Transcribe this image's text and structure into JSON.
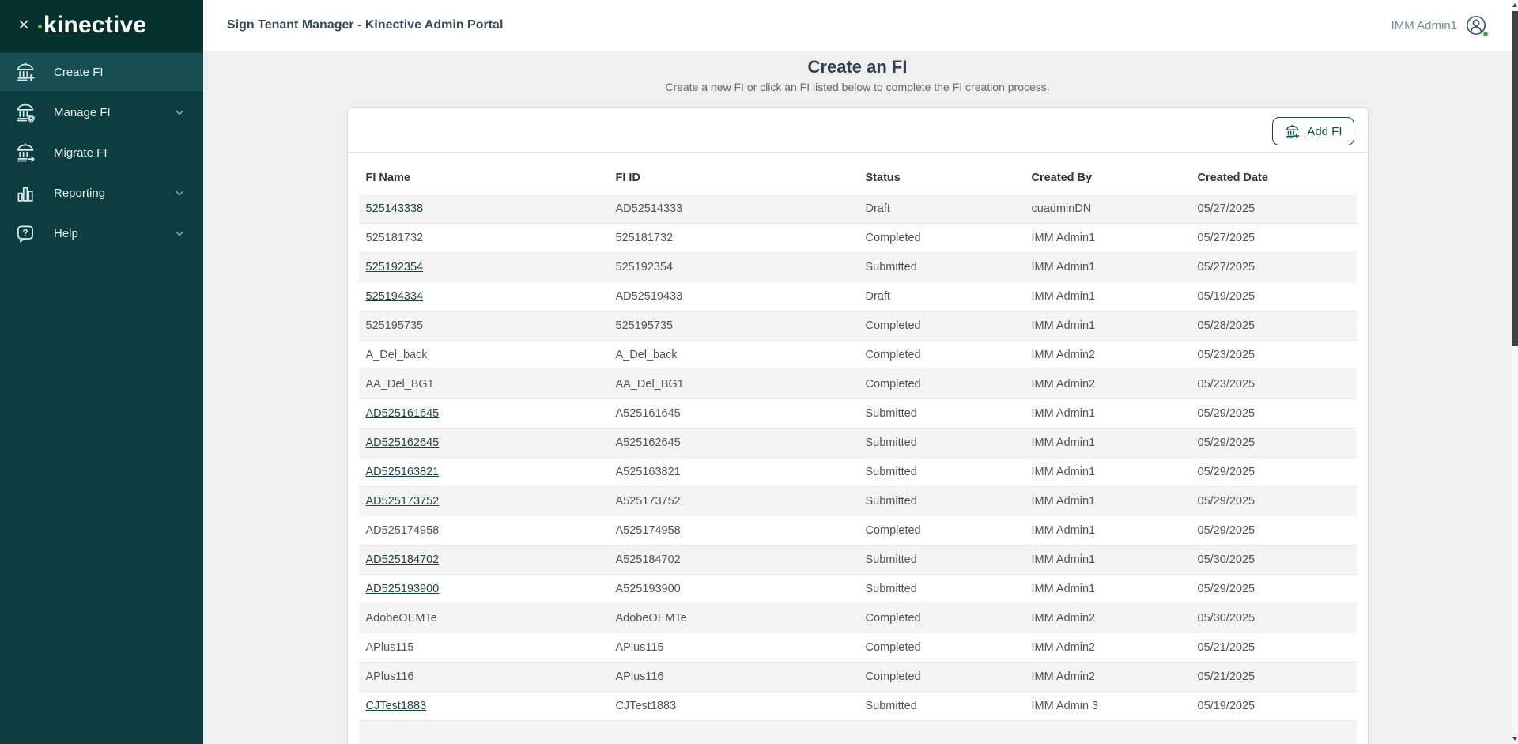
{
  "brand": {
    "logo_text": "kinective"
  },
  "topbar": {
    "title": "Sign Tenant Manager - Kinective Admin Portal",
    "user_name": "IMM Admin1"
  },
  "sidebar": {
    "items": [
      {
        "label": "Create FI",
        "icon": "bank-plus-icon",
        "active": true,
        "has_chevron": false
      },
      {
        "label": "Manage FI",
        "icon": "bank-gear-icon",
        "active": false,
        "has_chevron": true
      },
      {
        "label": "Migrate FI",
        "icon": "bank-arrow-icon",
        "active": false,
        "has_chevron": false
      },
      {
        "label": "Reporting",
        "icon": "bar-chart-icon",
        "active": false,
        "has_chevron": true
      },
      {
        "label": "Help",
        "icon": "help-bubble-icon",
        "active": false,
        "has_chevron": true
      }
    ]
  },
  "page": {
    "heading": "Create an FI",
    "subheading": "Create a new FI or click an FI listed below to complete the FI creation process.",
    "add_fi_button": "Add FI"
  },
  "table": {
    "columns": [
      "FI Name",
      "FI ID",
      "Status",
      "Created By",
      "Created Date"
    ],
    "rows": [
      {
        "name": "525143338",
        "link": true,
        "id": "AD52514333",
        "status": "Draft",
        "created_by": "cuadminDN",
        "created_date": "05/27/2025"
      },
      {
        "name": "525181732",
        "link": false,
        "id": "525181732",
        "status": "Completed",
        "created_by": "IMM Admin1",
        "created_date": "05/27/2025"
      },
      {
        "name": "525192354",
        "link": true,
        "id": "525192354",
        "status": "Submitted",
        "created_by": "IMM Admin1",
        "created_date": "05/27/2025"
      },
      {
        "name": "525194334",
        "link": true,
        "id": "AD52519433",
        "status": "Draft",
        "created_by": "IMM Admin1",
        "created_date": "05/19/2025"
      },
      {
        "name": "525195735",
        "link": false,
        "id": "525195735",
        "status": "Completed",
        "created_by": "IMM Admin1",
        "created_date": "05/28/2025"
      },
      {
        "name": "A_Del_back",
        "link": false,
        "id": "A_Del_back",
        "status": "Completed",
        "created_by": "IMM Admin2",
        "created_date": "05/23/2025"
      },
      {
        "name": "AA_Del_BG1",
        "link": false,
        "id": "AA_Del_BG1",
        "status": "Completed",
        "created_by": "IMM Admin2",
        "created_date": "05/23/2025"
      },
      {
        "name": "AD525161645",
        "link": true,
        "id": "A525161645",
        "status": "Submitted",
        "created_by": "IMM Admin1",
        "created_date": "05/29/2025"
      },
      {
        "name": "AD525162645",
        "link": true,
        "id": "A525162645",
        "status": "Submitted",
        "created_by": "IMM Admin1",
        "created_date": "05/29/2025"
      },
      {
        "name": "AD525163821",
        "link": true,
        "id": "A525163821",
        "status": "Submitted",
        "created_by": "IMM Admin1",
        "created_date": "05/29/2025"
      },
      {
        "name": "AD525173752",
        "link": true,
        "id": "A525173752",
        "status": "Submitted",
        "created_by": "IMM Admin1",
        "created_date": "05/29/2025"
      },
      {
        "name": "AD525174958",
        "link": false,
        "id": "A525174958",
        "status": "Completed",
        "created_by": "IMM Admin1",
        "created_date": "05/29/2025"
      },
      {
        "name": "AD525184702",
        "link": true,
        "id": "A525184702",
        "status": "Submitted",
        "created_by": "IMM Admin1",
        "created_date": "05/30/2025"
      },
      {
        "name": "AD525193900",
        "link": true,
        "id": "A525193900",
        "status": "Submitted",
        "created_by": "IMM Admin1",
        "created_date": "05/29/2025"
      },
      {
        "name": "AdobeOEMTe",
        "link": false,
        "id": "AdobeOEMTe",
        "status": "Completed",
        "created_by": "IMM Admin2",
        "created_date": "05/30/2025"
      },
      {
        "name": "APlus115",
        "link": false,
        "id": "APlus115",
        "status": "Completed",
        "created_by": "IMM Admin2",
        "created_date": "05/21/2025"
      },
      {
        "name": "APlus116",
        "link": false,
        "id": "APlus116",
        "status": "Completed",
        "created_by": "IMM Admin2",
        "created_date": "05/21/2025"
      },
      {
        "name": "CJTest1883",
        "link": true,
        "id": "CJTest1883",
        "status": "Submitted",
        "created_by": "IMM Admin 3",
        "created_date": "05/19/2025"
      }
    ],
    "partial_row_visible": true
  },
  "colors": {
    "sidebar_bg": "#0c3e40",
    "sidebar_logo_bg": "#04302e",
    "sidebar_active_bg": "#164e53",
    "accent_green": "#6abf4b",
    "presence_green": "#3fae49",
    "link_teal": "#1d4341",
    "button_teal": "#11494b",
    "page_bg": "#efefef",
    "row_stripe": "#f4f4f5",
    "title_slate": "#35495c"
  }
}
